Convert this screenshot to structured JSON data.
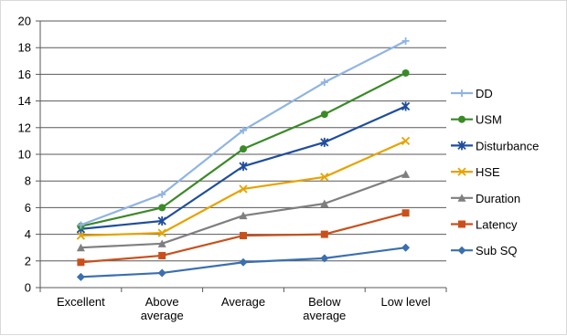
{
  "chart_data": {
    "type": "line",
    "categories": [
      [
        "Excellent"
      ],
      [
        "Above",
        "average"
      ],
      [
        "Average"
      ],
      [
        "Below",
        "average"
      ],
      [
        "Low level"
      ]
    ],
    "ylim": [
      0,
      20
    ],
    "ytick_step": 2,
    "grid": true,
    "legend_placement": "right",
    "series": [
      {
        "name": "DD",
        "color": "#8fb4e3",
        "marker": "plus",
        "values": [
          4.7,
          7.0,
          11.8,
          15.4,
          18.5
        ]
      },
      {
        "name": "USM",
        "color": "#3a8a27",
        "marker": "circle",
        "values": [
          4.6,
          6.0,
          10.4,
          13.0,
          16.1
        ]
      },
      {
        "name": "Disturbance",
        "color": "#1f4e9c",
        "marker": "star",
        "values": [
          4.4,
          5.0,
          9.1,
          10.9,
          13.6
        ]
      },
      {
        "name": "HSE",
        "color": "#e6a300",
        "marker": "x",
        "values": [
          3.9,
          4.1,
          7.4,
          8.3,
          11.0
        ]
      },
      {
        "name": "Duration",
        "color": "#7f7f7f",
        "marker": "triangle",
        "values": [
          3.0,
          3.3,
          5.4,
          6.3,
          8.5
        ]
      },
      {
        "name": "Latency",
        "color": "#c9501c",
        "marker": "square",
        "values": [
          1.9,
          2.4,
          3.9,
          4.0,
          5.6
        ]
      },
      {
        "name": "Sub SQ",
        "color": "#3a6fb0",
        "marker": "diamond",
        "values": [
          0.8,
          1.1,
          1.9,
          2.2,
          3.0
        ]
      }
    ]
  }
}
